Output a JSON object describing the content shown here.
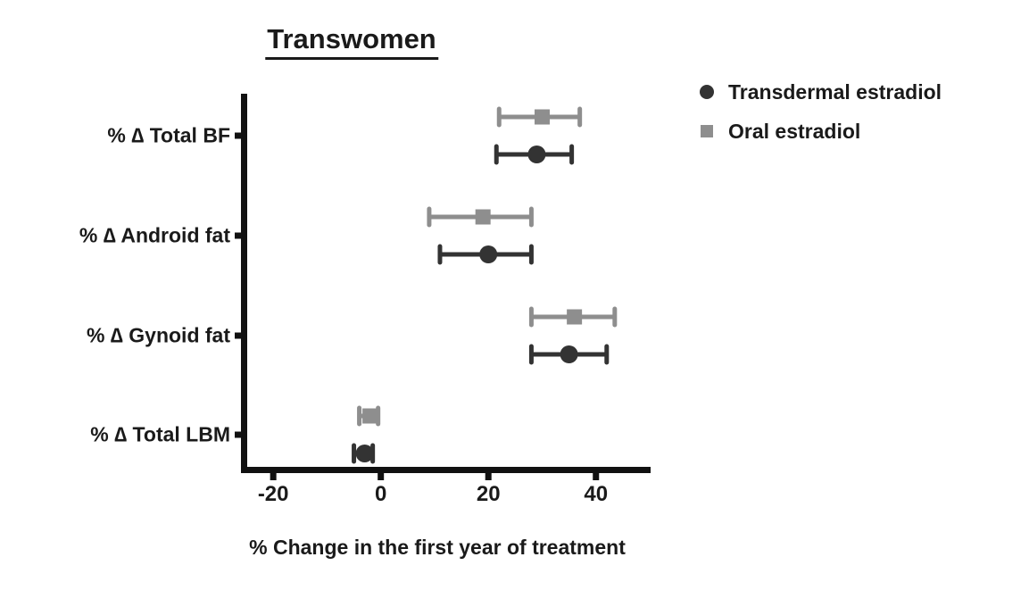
{
  "chart_data": {
    "type": "scatter",
    "subtype": "forest-plot-horizontal-error-bars",
    "title": "Transwomen",
    "xlabel": "% Change in the first year of treatment",
    "categories": [
      "% ∆ Total BF",
      "% ∆ Android fat",
      "% ∆ Gynoid fat",
      "% ∆ Total LBM"
    ],
    "xticks": [
      -20,
      0,
      20,
      40
    ],
    "xtick_labels": [
      "-20",
      "0",
      "20",
      "40"
    ],
    "xlim": [
      -26,
      50
    ],
    "grid": false,
    "legend_position": "top-right",
    "axis_color": "#111111",
    "text_color": "#1a1a1a",
    "series": [
      {
        "name": "Transdermal estradiol",
        "marker": "circle",
        "color": "#333333",
        "values": [
          29,
          20,
          35,
          -3
        ],
        "ci_low": [
          21.5,
          11,
          28,
          -5
        ],
        "ci_high": [
          35.5,
          28,
          42,
          -1.5
        ]
      },
      {
        "name": "Oral estradiol",
        "marker": "square",
        "color": "#8e8e8e",
        "values": [
          30,
          19,
          36,
          -2
        ],
        "ci_low": [
          22,
          9,
          28,
          -4
        ],
        "ci_high": [
          37,
          28,
          43.5,
          -0.5
        ]
      }
    ]
  }
}
